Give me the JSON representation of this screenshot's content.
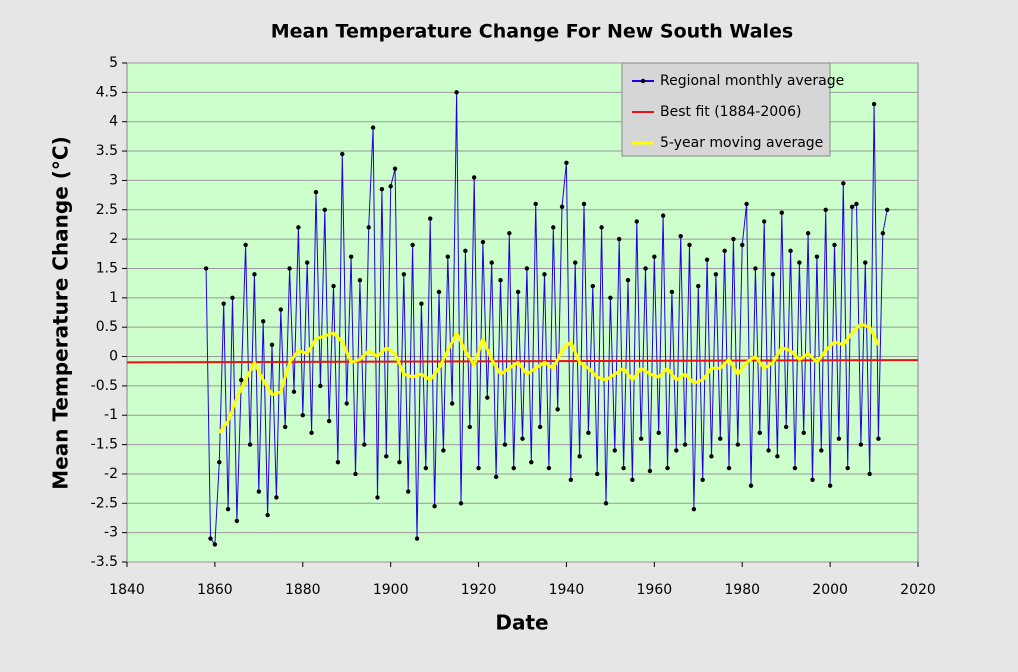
{
  "chart_data": {
    "type": "line",
    "title": "Mean Temperature Change For New South Wales",
    "xlabel": "Date",
    "ylabel": "Mean  Temperature  Change  (°C)",
    "xlim": [
      1840,
      2020
    ],
    "xticks": [
      1840,
      1860,
      1880,
      1900,
      1920,
      1940,
      1960,
      1980,
      2000,
      2020
    ],
    "ylim": [
      -3.5,
      5
    ],
    "yticks": [
      5,
      4.5,
      4,
      3.5,
      3,
      2.5,
      2,
      1.5,
      1,
      0.5,
      0,
      -0.5,
      -1,
      -1.5,
      -2,
      -2.5,
      -3,
      -3.5
    ],
    "legend": "upper right",
    "background": "#ccffcc",
    "series": [
      {
        "name": "Regional monthly average",
        "color": "#2200dd",
        "markers": true,
        "x": [
          1858,
          1859,
          1860,
          1861,
          1862,
          1863,
          1864,
          1865,
          1866,
          1867,
          1868,
          1869,
          1870,
          1871,
          1872,
          1873,
          1874,
          1875,
          1876,
          1877,
          1878,
          1879,
          1880,
          1881,
          1882,
          1883,
          1884,
          1885,
          1886,
          1887,
          1888,
          1889,
          1890,
          1891,
          1892,
          1893,
          1894,
          1895,
          1896,
          1897,
          1898,
          1899,
          1900,
          1901,
          1902,
          1903,
          1904,
          1905,
          1906,
          1907,
          1908,
          1909,
          1910,
          1911,
          1912,
          1913,
          1914,
          1915,
          1916,
          1917,
          1918,
          1919,
          1920,
          1921,
          1922,
          1923,
          1924,
          1925,
          1926,
          1927,
          1928,
          1929,
          1930,
          1931,
          1932,
          1933,
          1934,
          1935,
          1936,
          1937,
          1938,
          1939,
          1940,
          1941,
          1942,
          1943,
          1944,
          1945,
          1946,
          1947,
          1948,
          1949,
          1950,
          1951,
          1952,
          1953,
          1954,
          1955,
          1956,
          1957,
          1958,
          1959,
          1960,
          1961,
          1962,
          1963,
          1964,
          1965,
          1966,
          1967,
          1968,
          1969,
          1970,
          1971,
          1972,
          1973,
          1974,
          1975,
          1976,
          1977,
          1978,
          1979,
          1980,
          1981,
          1982,
          1983,
          1984,
          1985,
          1986,
          1987,
          1988,
          1989,
          1990,
          1991,
          1992,
          1993,
          1994,
          1995,
          1996,
          1997,
          1998,
          1999,
          2000,
          2001,
          2002,
          2003,
          2004,
          2005,
          2006,
          2007,
          2008,
          2009,
          2010,
          2011,
          2012,
          2013
        ],
        "values": [
          1.5,
          -3.1,
          -3.2,
          -1.8,
          0.9,
          -2.6,
          1.0,
          -2.8,
          -0.4,
          1.9,
          -1.5,
          1.4,
          -2.3,
          0.6,
          -2.7,
          0.2,
          -2.4,
          0.8,
          -1.2,
          1.5,
          -0.6,
          2.2,
          -1.0,
          1.6,
          -1.3,
          2.8,
          -0.5,
          2.5,
          -1.1,
          1.2,
          -1.8,
          3.45,
          -0.8,
          1.7,
          -2.0,
          1.3,
          -1.5,
          2.2,
          3.9,
          -2.4,
          2.85,
          -1.7,
          2.9,
          3.2,
          -1.8,
          1.4,
          -2.3,
          1.9,
          -3.1,
          0.9,
          -1.9,
          2.35,
          -2.55,
          1.1,
          -1.6,
          1.7,
          -0.8,
          4.5,
          -2.5,
          1.8,
          -1.2,
          3.05,
          -1.9,
          1.95,
          -0.7,
          1.6,
          -2.05,
          1.3,
          -1.5,
          2.1,
          -1.9,
          1.1,
          -1.4,
          1.5,
          -1.8,
          2.6,
          -1.2,
          1.4,
          -1.9,
          2.2,
          -0.9,
          2.55,
          3.3,
          -2.1,
          1.6,
          -1.7,
          2.6,
          -1.3,
          1.2,
          -2.0,
          2.2,
          -2.5,
          1.0,
          -1.6,
          2.0,
          -1.9,
          1.3,
          -2.1,
          2.3,
          -1.4,
          1.5,
          -1.95,
          1.7,
          -1.3,
          2.4,
          -1.9,
          1.1,
          -1.6,
          2.05,
          -1.5,
          1.9,
          -2.6,
          1.2,
          -2.1,
          1.65,
          -1.7,
          1.4,
          -1.4,
          1.8,
          -1.9,
          2.0,
          -1.5,
          1.9,
          2.6,
          -2.2,
          1.5,
          -1.3,
          2.3,
          -1.6,
          1.4,
          -1.7,
          2.45,
          -1.2,
          1.8,
          -1.9,
          1.6,
          -1.3,
          2.1,
          -2.1,
          1.7,
          -1.6,
          2.5,
          -2.2,
          1.9,
          -1.4,
          2.95,
          -1.9,
          2.55,
          2.6,
          -1.5,
          1.6,
          -2.0,
          4.3,
          -1.4,
          2.1,
          2.5
        ]
      },
      {
        "name": "Best fit (1884-2006)",
        "color": "#ee1111",
        "markers": false,
        "x": [
          1840,
          2020
        ],
        "values": [
          -0.1,
          -0.06
        ]
      },
      {
        "name": "5-year moving average",
        "color": "#ffff00",
        "markers": false,
        "x": [
          1861,
          1863,
          1865,
          1867,
          1869,
          1871,
          1873,
          1875,
          1877,
          1879,
          1881,
          1883,
          1885,
          1887,
          1889,
          1891,
          1893,
          1895,
          1897,
          1899,
          1901,
          1903,
          1905,
          1907,
          1909,
          1911,
          1913,
          1915,
          1917,
          1919,
          1921,
          1923,
          1925,
          1927,
          1929,
          1931,
          1933,
          1935,
          1937,
          1939,
          1941,
          1943,
          1945,
          1947,
          1949,
          1951,
          1953,
          1955,
          1957,
          1959,
          1961,
          1963,
          1965,
          1967,
          1969,
          1971,
          1973,
          1975,
          1977,
          1979,
          1981,
          1983,
          1985,
          1987,
          1989,
          1991,
          1993,
          1995,
          1997,
          1999,
          2001,
          2003,
          2005,
          2007,
          2009,
          2011
        ],
        "values": [
          -1.3,
          -1.1,
          -0.7,
          -0.4,
          -0.1,
          -0.4,
          -0.65,
          -0.6,
          -0.1,
          0.1,
          0.05,
          0.3,
          0.35,
          0.4,
          0.25,
          -0.1,
          -0.05,
          0.1,
          0.0,
          0.15,
          0.05,
          -0.3,
          -0.35,
          -0.3,
          -0.4,
          -0.2,
          0.1,
          0.4,
          0.1,
          -0.15,
          0.3,
          -0.05,
          -0.3,
          -0.2,
          -0.1,
          -0.3,
          -0.2,
          -0.1,
          -0.2,
          0.1,
          0.25,
          -0.1,
          -0.2,
          -0.35,
          -0.4,
          -0.3,
          -0.2,
          -0.4,
          -0.2,
          -0.3,
          -0.35,
          -0.2,
          -0.4,
          -0.3,
          -0.45,
          -0.4,
          -0.2,
          -0.2,
          -0.05,
          -0.3,
          -0.1,
          0.0,
          -0.2,
          -0.1,
          0.15,
          0.1,
          -0.05,
          0.05,
          -0.1,
          0.1,
          0.25,
          0.2,
          0.4,
          0.55,
          0.5,
          0.2
        ]
      }
    ]
  }
}
